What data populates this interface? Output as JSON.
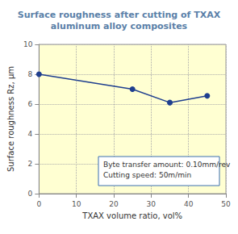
{
  "chart_data": {
    "type": "line",
    "title": "Surface roughness after cutting of TXAX\naluminum alloy composites",
    "x_label": "TXAX volume ratio, vol%",
    "y_label": "Surface roughness Rz, μm",
    "x": [
      0,
      25,
      35,
      45
    ],
    "values": [
      8.0,
      7.0,
      6.1,
      6.55
    ],
    "color": "#1f3f8f",
    "marker": "circle",
    "xlim": [
      0,
      50
    ],
    "xticks": [
      0,
      10,
      20,
      30,
      40,
      50
    ],
    "ylim": [
      0,
      10
    ],
    "yticks": [
      0,
      2,
      4,
      6,
      8,
      10
    ],
    "grid": true,
    "annotations": [
      "Byte transfer amount: 0.10mm/rev",
      "Cutting speed: 50m/min"
    ]
  }
}
